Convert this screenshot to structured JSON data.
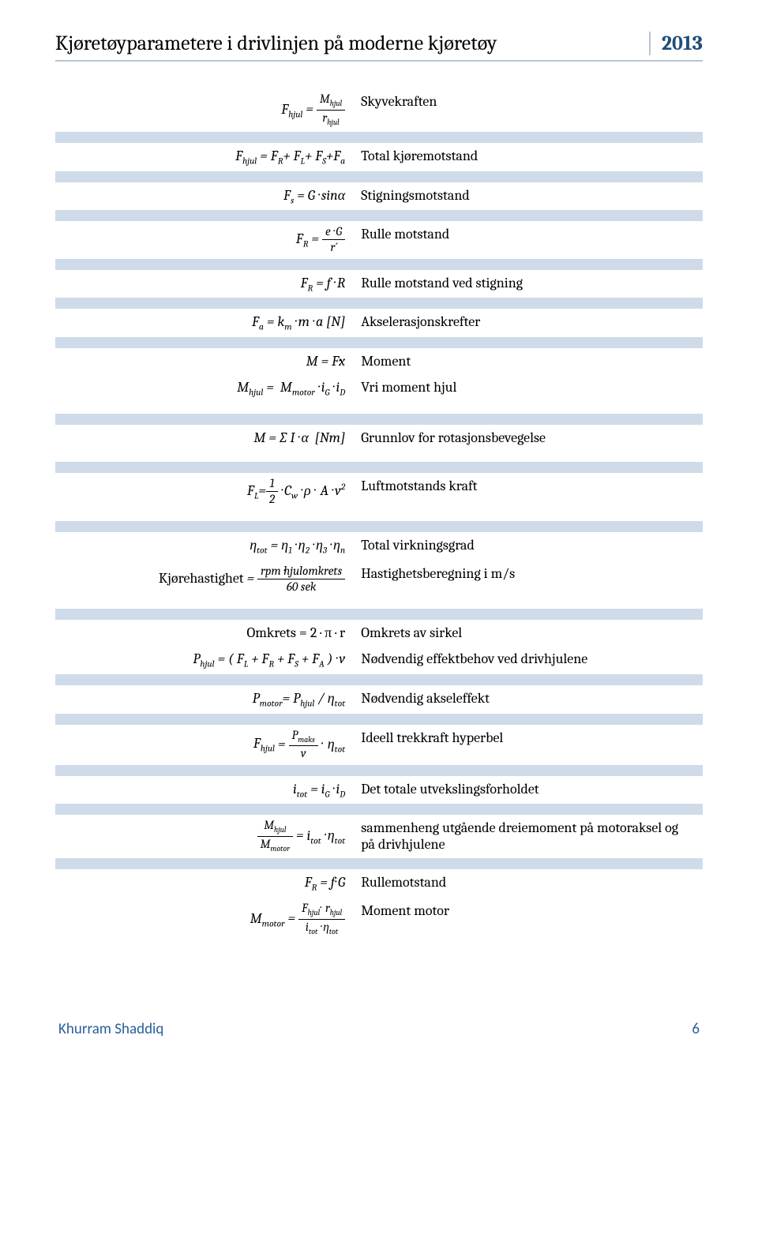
{
  "header": {
    "title": "Kjøretøyparametere i drivlinjen på moderne kjøretøy",
    "year": "2013"
  },
  "colors": {
    "band": "#cfdbe9",
    "header_border": "#b8c4d4",
    "year_text": "#1f4e79",
    "footer_text": "#2a6099",
    "background": "#ffffff",
    "text": "#000000"
  },
  "rows": [
    {
      "band": false,
      "left_html": "<span class='italic-var'>F<sub>hjul</sub></span> = <span class='frac'><span class='num'>M<sub>hjul</sub></span><span class='den'>r<sub>hjul</sub></span></span>",
      "right": "Skyvekraften"
    },
    {
      "type": "spacer",
      "band": true
    },
    {
      "band": false,
      "left_html": "<span class='italic-var'>F<sub>hjul</sub></span> = <span class='italic-var'>F<sub>R</sub></span>+ <span class='italic-var'>F<sub>L</sub></span>+ <span class='italic-var'>F<sub>S</sub></span>+<span class='italic-var'>F<sub>a</sub></span>",
      "right": "Total kjøremotstand"
    },
    {
      "type": "spacer",
      "band": true
    },
    {
      "band": false,
      "left_html": "<span class='italic-var'>F<sub>s</sub></span> = G · sinα",
      "right": "Stigningsmotstand"
    },
    {
      "type": "spacer",
      "band": true
    },
    {
      "band": false,
      "left_html": "<span class='italic-var'>F<sub>R</sub></span> = <span class='frac'><span class='num'><span class='italic-var'>e</span> · G</span><span class='den'>r´</span></span>",
      "right": "Rulle motstand"
    },
    {
      "type": "spacer",
      "band": true
    },
    {
      "band": false,
      "left_html": "<span class='italic-var'>F<sub>R</sub></span> = <span class='italic-var'>f</span> · <span class='italic-var'>R</span>",
      "right": "Rulle motstand ved stigning"
    },
    {
      "type": "spacer",
      "band": true
    },
    {
      "band": false,
      "left_html": "<span class='italic-var'>F<sub>a</sub></span> = <span class='italic-var'>k<sub>m</sub></span> · m · a [N]",
      "right": "Akselerasjonskrefter"
    },
    {
      "type": "spacer",
      "band": true
    },
    {
      "band": false,
      "left_html": "M = F·x",
      "right": "Moment"
    },
    {
      "band": false,
      "left_html": "M<sub>hjul</sub> = &nbsp;M<sub>motor</sub> · <span class='italic-var'>i<sub>G</sub></span> · <span class='italic-var'>i<sub>D</sub></span>",
      "right": "Vri moment hjul"
    },
    {
      "type": "spacer",
      "band": false
    },
    {
      "type": "spacer",
      "band": true
    },
    {
      "band": false,
      "left_html": "M = ∑ I · α &nbsp;[Nm]",
      "right": "Grunnlov for rotasjonsbevegelse"
    },
    {
      "type": "spacer",
      "band": false
    },
    {
      "type": "spacer",
      "band": true
    },
    {
      "band": false,
      "left_html": "<span class='italic-var'>F<sub>L</sub></span>=<span class='frac'><span class='num'>1</span><span class='den'>2</span></span> · <span class='italic-var'>C<sub>w</sub></span> · ρ ·&nbsp; A · v<sup>2</sup>",
      "right": "Luftmotstands kraft"
    },
    {
      "type": "spacer",
      "band": false
    },
    {
      "type": "spacer",
      "band": true
    },
    {
      "band": false,
      "left_html": "η<sub><span class='italic-var'>tot</span></sub> = η<sub>1</sub> · η<sub>2</sub> · η<sub>3</sub> · η<sub><span class='italic-var'>n</span></sub>",
      "right": "Total virkningsgrad"
    },
    {
      "band": false,
      "left_html": "<span class='upright'>Kjørehastighet</span> = <span class='frac'><span class='num'><span class='italic-var'>rpm</span> ·<span class='italic-var'>hjulomkrets</span></span><span class='den'>60 <span class='italic-var'>sek</span></span></span>",
      "right": "Hastighetsberegning i m/s"
    },
    {
      "type": "spacer",
      "band": false
    },
    {
      "type": "spacer",
      "band": true
    },
    {
      "band": false,
      "left_html": "<span class='upright'>Omkrets = 2 · π · r</span>",
      "right": "Omkrets av sirkel"
    },
    {
      "band": false,
      "left_html": "<span class='italic-var'>P<sub>hjul</sub></span> = ( <span class='italic-var'>F<sub>L</sub></span> + <span class='italic-var'>F<sub>R</sub></span> + <span class='italic-var'>F<sub>S</sub></span> + <span class='italic-var'>F<sub>A</sub></span> ) · v",
      "right": "Nødvendig effektbehov ved drivhjulene"
    },
    {
      "type": "spacer",
      "band": true
    },
    {
      "band": false,
      "left_html": "<span class='italic-var'>P<sub>motor</sub></span>= <span class='italic-var'>P<sub>hjul</sub></span> / η<sub><span class='italic-var'>tot</span></sub>",
      "right": "Nødvendig akseleffekt"
    },
    {
      "type": "spacer",
      "band": true
    },
    {
      "band": false,
      "left_html": "<span class='italic-var'>F<sub>hjul</sub></span> = <span class='frac'><span class='num'><span class='italic-var'>P<sub>maks</sub></span></span><span class='den'><span class='italic-var'>v</span></span></span> ·&nbsp; η<sub><span class='italic-var'>tot</span></sub>",
      "right": "Ideell trekkraft hyperbel"
    },
    {
      "type": "spacer",
      "band": true
    },
    {
      "band": false,
      "left_html": "<span class='italic-var'>i<sub>tot</sub></span> = <span class='italic-var'>i<sub>G</sub></span> · <span class='italic-var'>i<sub>D</sub></span>",
      "right": "Det totale utvekslingsforholdet"
    },
    {
      "type": "spacer",
      "band": true
    },
    {
      "band": false,
      "left_html": "<span class='frac'><span class='num'><span class='italic-var'>M<sub>hjul</sub></span></span><span class='den'><span class='italic-var'>M<sub>motor</sub></span></span></span> = <span class='italic-var'>i<sub>tot</sub></span> · η<sub><span class='italic-var'>tot</span></sub>",
      "right": "sammenheng utgående dreiemoment på motoraksel og på drivhjulene"
    },
    {
      "type": "spacer",
      "band": true
    },
    {
      "band": false,
      "left_html": "F<sub>R</sub> = <span class='italic-var'>f</span>· G",
      "right": "Rullemotstand"
    },
    {
      "band": false,
      "left_html": "<span class='italic-var'>M<sub>motor</sub></span> = <span class='frac'><span class='num'><span class='italic-var'>F<sub>hjul</sub></span>·&nbsp; r<sub>hjul</sub></span><span class='den'><span class='italic-var'>i<sub>tot</sub></span> · η<sub><span class='italic-var'>tot</span></sub></span></span>",
      "right": "Moment motor"
    }
  ],
  "footer": {
    "author": "Khurram Shaddiq",
    "page": "6"
  }
}
